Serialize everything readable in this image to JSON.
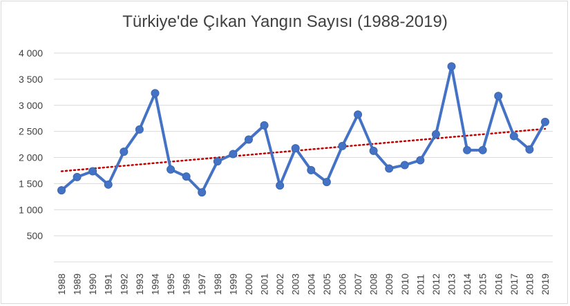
{
  "chart_data": {
    "type": "line",
    "title": "Türkiye'de Çıkan Yangın Sayısı (1988-2019)",
    "xlabel": "",
    "ylabel": "",
    "categories": [
      "1988",
      "1989",
      "1990",
      "1991",
      "1992",
      "1993",
      "1994",
      "1995",
      "1996",
      "1997",
      "1998",
      "1999",
      "2000",
      "2001",
      "2002",
      "2003",
      "2004",
      "2005",
      "2006",
      "2007",
      "2008",
      "2009",
      "2010",
      "2011",
      "2012",
      "2013",
      "2014",
      "2015",
      "2016",
      "2017",
      "2018",
      "2019"
    ],
    "series": [
      {
        "values": [
          1371,
          1626,
          1736,
          1481,
          2110,
          2536,
          3231,
          1771,
          1635,
          1332,
          1925,
          2066,
          2343,
          2615,
          1464,
          2176,
          1758,
          1530,
          2220,
          2822,
          2127,
          1789,
          1855,
          1947,
          2444,
          3745,
          2141,
          2141,
          3178,
          2409,
          2154,
          2681
        ],
        "color": "#4472c4",
        "marker": "circle"
      }
    ],
    "trendline": {
      "type": "linear",
      "style": "dotted",
      "color": "#c00000",
      "start": 1736,
      "end": 2549
    },
    "ylim": [
      0,
      4000
    ],
    "yticks": [
      500,
      1000,
      1500,
      2000,
      2500,
      3000,
      3500,
      4000
    ],
    "ytick_labels": [
      "500",
      "1 000",
      "1 500",
      "2 000",
      "2 500",
      "3 000",
      "3 500",
      "4 000"
    ],
    "grid": true,
    "legend": "none"
  }
}
